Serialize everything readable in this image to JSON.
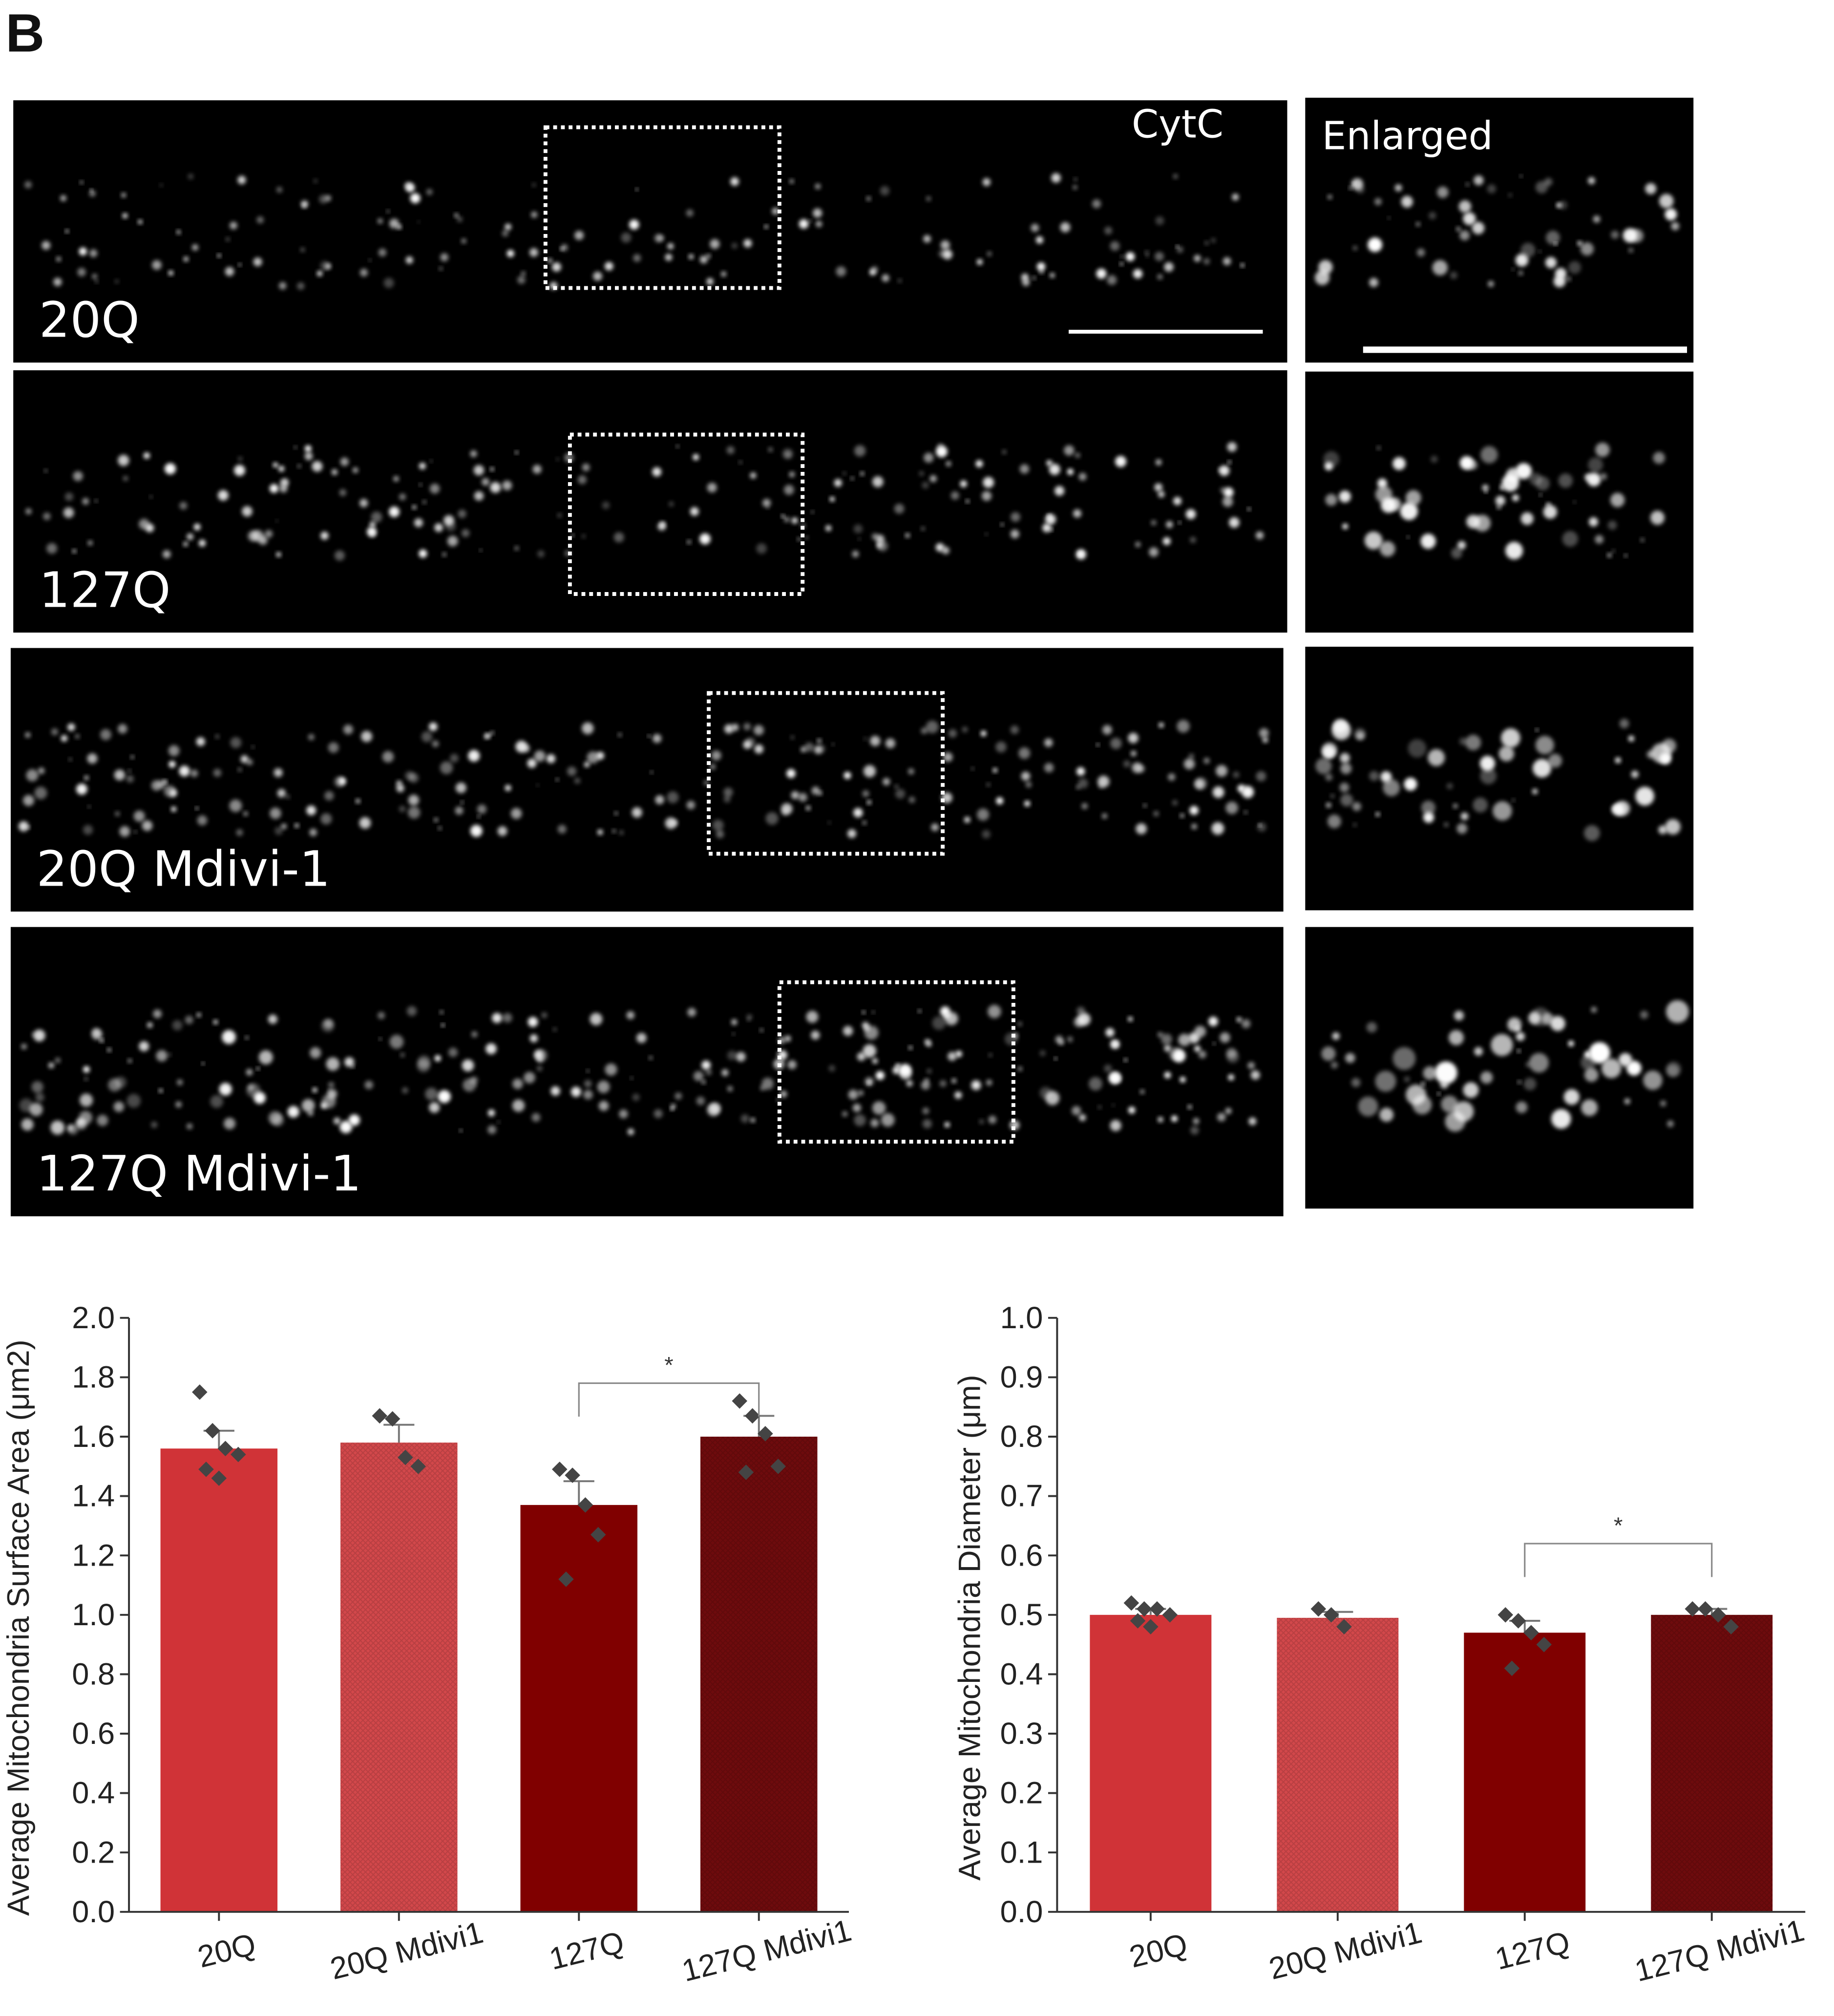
{
  "panel_label": "B",
  "images": {
    "channel_label": "CytC",
    "enlarged_label": "Enlarged",
    "rows": [
      "20Q",
      "127Q",
      "20Q Mdivi-1",
      "127Q Mdivi-1"
    ]
  },
  "chart_data": [
    {
      "type": "bar",
      "ylabel": "Average Mitochondria Surface Area (μm2)",
      "categories": [
        "20Q",
        "20Q Mdivi1",
        "127Q",
        "127Q Mdivi1"
      ],
      "values": [
        1.56,
        1.58,
        1.37,
        1.6
      ],
      "errors": [
        0.06,
        0.06,
        0.08,
        0.07
      ],
      "colors": [
        "#d03337",
        "#d2484b",
        "#800000",
        "#6e0b0d"
      ],
      "hatched": [
        false,
        true,
        false,
        true
      ],
      "points": [
        [
          1.75,
          1.62,
          1.56,
          1.54,
          1.49,
          1.46
        ],
        [
          1.67,
          1.66,
          1.53,
          1.5
        ],
        [
          1.49,
          1.47,
          1.37,
          1.27,
          1.12
        ],
        [
          1.72,
          1.67,
          1.61,
          1.5,
          1.48
        ]
      ],
      "point_color": "#444444",
      "significance": {
        "from": 2,
        "to": 3,
        "label": "*",
        "y": 1.78
      },
      "ylim": [
        0,
        2
      ],
      "yticks": [
        {
          "value": 0,
          "label": "0.0"
        },
        0.2,
        0.4,
        0.6,
        0.8,
        {
          "value": 1,
          "label": "1.0"
        },
        1.2,
        1.4,
        1.6,
        1.8,
        {
          "value": 2,
          "label": "2.0"
        }
      ]
    },
    {
      "type": "bar",
      "ylabel": "Average Mitochondria Diameter (μm)",
      "categories": [
        "20Q",
        "20Q Mdivi1",
        "127Q",
        "127Q Mdivi1"
      ],
      "values": [
        0.5,
        0.495,
        0.47,
        0.5
      ],
      "errors": [
        0.01,
        0.01,
        0.02,
        0.01
      ],
      "colors": [
        "#d03337",
        "#d2484b",
        "#800000",
        "#6e0b0d"
      ],
      "hatched": [
        false,
        true,
        false,
        true
      ],
      "points": [
        [
          0.52,
          0.51,
          0.51,
          0.5,
          0.49,
          0.48
        ],
        [
          0.51,
          0.5,
          0.48
        ],
        [
          0.5,
          0.49,
          0.47,
          0.45,
          0.41
        ],
        [
          0.51,
          0.51,
          0.5,
          0.48
        ]
      ],
      "point_color": "#444444",
      "significance": {
        "from": 2,
        "to": 3,
        "label": "*",
        "y": 0.62
      },
      "ylim": [
        0,
        1
      ],
      "yticks": [
        {
          "value": 0,
          "label": "0.0"
        },
        0.1,
        0.2,
        0.3,
        0.4,
        0.5,
        0.6,
        0.7,
        0.8,
        0.9,
        {
          "value": 1,
          "label": "1.0"
        }
      ]
    }
  ]
}
